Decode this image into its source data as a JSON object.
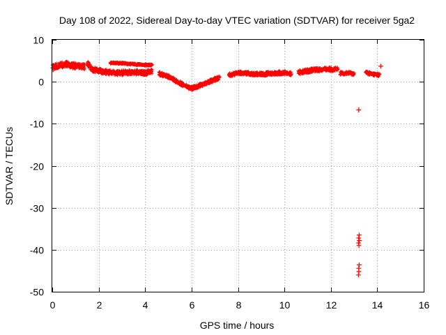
{
  "chart_data": {
    "type": "scatter",
    "title": "Day 108 of 2022, Sidereal Day-to-day VTEC variation (SDTVAR) for receiver 5ga2",
    "xlabel": "GPS time / hours",
    "ylabel": "SDTVAR / TECUs",
    "xlim": [
      0,
      16
    ],
    "ylim": [
      -50,
      10
    ],
    "xticks": [
      0,
      2,
      4,
      6,
      8,
      10,
      12,
      14,
      16
    ],
    "yticks": [
      -50,
      -40,
      -30,
      -20,
      -10,
      0,
      10
    ],
    "grid": true,
    "marker": "+",
    "color": "#ff0000",
    "series": [
      {
        "name": "SDTVAR",
        "bands": [
          {
            "x": [
              0.0,
              0.3,
              0.6,
              1.0,
              1.4
            ],
            "y": [
              3.3,
              3.9,
              4.2,
              3.7,
              3.5
            ],
            "spread": 1.4
          },
          {
            "x": [
              1.5,
              1.7,
              2.0,
              2.5,
              3.0,
              3.5,
              4.0,
              4.3
            ],
            "y": [
              4.5,
              3.0,
              2.6,
              2.2,
              2.1,
              2.3,
              2.1,
              2.4
            ],
            "spread": 1.2
          },
          {
            "x": [
              2.5,
              3.0,
              3.5,
              4.0,
              4.3
            ],
            "y": [
              4.5,
              4.4,
              4.2,
              4.0,
              4.0
            ],
            "spread": 0.4
          },
          {
            "x": [
              4.6,
              5.0,
              5.4,
              5.8,
              6.0,
              6.4,
              6.8,
              7.2
            ],
            "y": [
              2.0,
              1.2,
              0.0,
              -1.2,
              -1.6,
              -0.8,
              0.1,
              1.0
            ],
            "spread": 0.9
          },
          {
            "x": [
              7.6,
              8.0,
              9.0,
              10.0,
              10.3
            ],
            "y": [
              1.6,
              2.1,
              1.8,
              2.2,
              1.9
            ],
            "spread": 0.9
          },
          {
            "x": [
              10.6,
              11.0,
              11.5,
              12.0,
              12.3
            ],
            "y": [
              2.2,
              2.6,
              2.9,
              3.0,
              2.9
            ],
            "spread": 1.0
          },
          {
            "x": [
              12.4,
              12.8,
              13.0
            ],
            "y": [
              2.0,
              2.1,
              1.9
            ],
            "spread": 0.8
          },
          {
            "x": [
              13.5,
              13.8,
              14.1
            ],
            "y": [
              2.2,
              1.8,
              1.6
            ],
            "spread": 0.8
          }
        ],
        "points": [
          {
            "x": 13.2,
            "y": -6.7
          },
          {
            "x": 13.22,
            "y": -36.5
          },
          {
            "x": 13.2,
            "y": -37.2
          },
          {
            "x": 13.23,
            "y": -37.8
          },
          {
            "x": 13.19,
            "y": -38.4
          },
          {
            "x": 13.21,
            "y": -39.0
          },
          {
            "x": 13.22,
            "y": -43.6
          },
          {
            "x": 13.2,
            "y": -44.4
          },
          {
            "x": 13.21,
            "y": -45.2
          },
          {
            "x": 13.19,
            "y": -46.0
          },
          {
            "x": 14.15,
            "y": 3.7
          }
        ]
      }
    ]
  }
}
